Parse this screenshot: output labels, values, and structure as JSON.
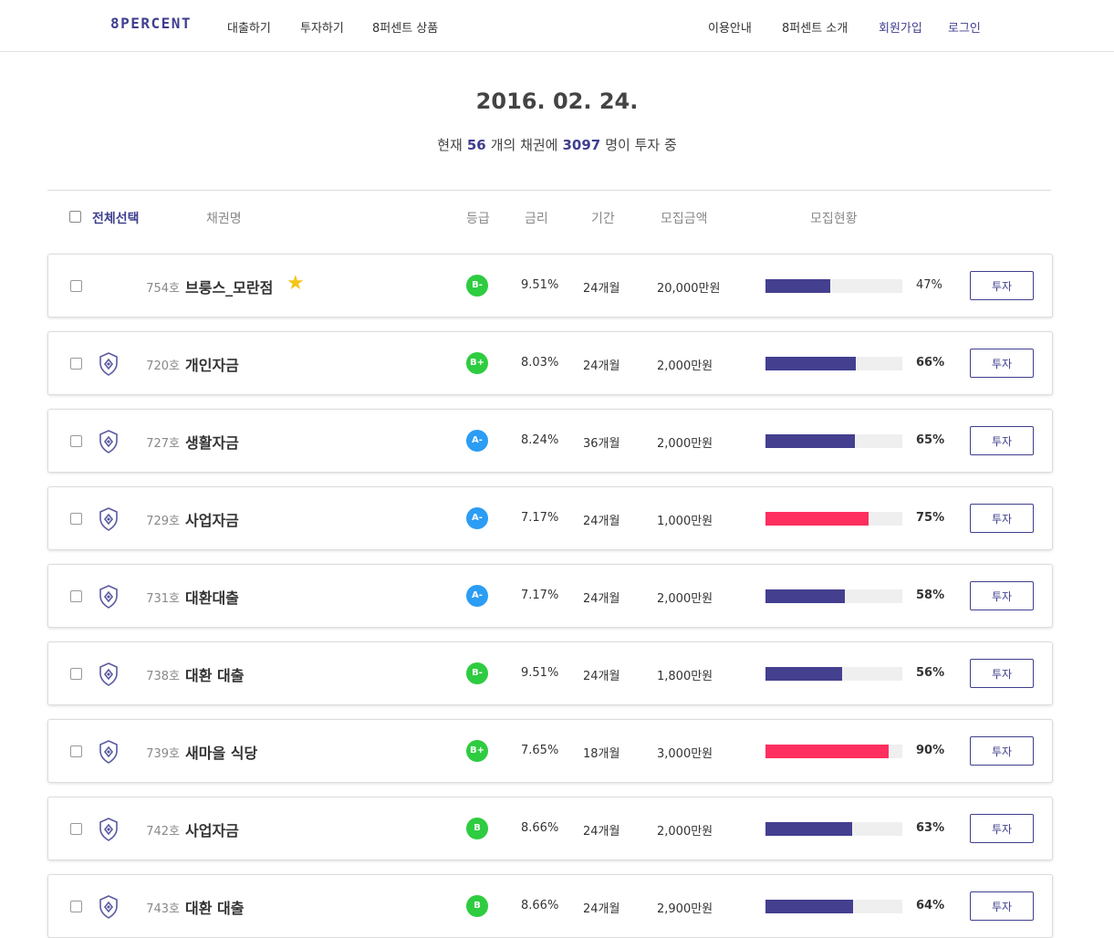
{
  "header": {
    "logo": "8PERCENT",
    "nav_left": [
      "대출하기",
      "투자하기",
      "8퍼센트 상품"
    ],
    "nav_right": [
      "이용안내",
      "8퍼센트 소개",
      "회원가입",
      "로그인"
    ],
    "accent_color": "#3f3f8f"
  },
  "summary": {
    "date": "2016. 02. 24.",
    "prefix": "현재",
    "bond_count": "56",
    "mid": "개의 채권에",
    "investor_count": "3097",
    "suffix": "명이 투자 중"
  },
  "table": {
    "select_all": "전체선택",
    "columns": [
      "채권명",
      "등급",
      "금리",
      "기간",
      "모집금액",
      "모집현황"
    ],
    "invest_label": "투자",
    "rows": [
      {
        "no": "754호",
        "name": "브룽스_모란점",
        "star": true,
        "shield": false,
        "grade": "B-",
        "grade_color": "#2ecc40",
        "rate": "9.51%",
        "term": "24개월",
        "amount": "20,000만원",
        "progress": 47,
        "pct": "47%",
        "bar_color": "#443f8f",
        "pct_bold": false
      },
      {
        "no": "720호",
        "name": "개인자금",
        "star": false,
        "shield": true,
        "grade": "B+",
        "grade_color": "#2ecc40",
        "rate": "8.03%",
        "term": "24개월",
        "amount": "2,000만원",
        "progress": 66,
        "pct": "66%",
        "bar_color": "#443f8f",
        "pct_bold": true
      },
      {
        "no": "727호",
        "name": "생활자금",
        "star": false,
        "shield": true,
        "grade": "A-",
        "grade_color": "#2b9df4",
        "rate": "8.24%",
        "term": "36개월",
        "amount": "2,000만원",
        "progress": 65,
        "pct": "65%",
        "bar_color": "#443f8f",
        "pct_bold": true
      },
      {
        "no": "729호",
        "name": "사업자금",
        "star": false,
        "shield": true,
        "grade": "A-",
        "grade_color": "#2b9df4",
        "rate": "7.17%",
        "term": "24개월",
        "amount": "1,000만원",
        "progress": 75,
        "pct": "75%",
        "bar_color": "#ff2f5f",
        "pct_bold": true
      },
      {
        "no": "731호",
        "name": "대환대출",
        "star": false,
        "shield": true,
        "grade": "A-",
        "grade_color": "#2b9df4",
        "rate": "7.17%",
        "term": "24개월",
        "amount": "2,000만원",
        "progress": 58,
        "pct": "58%",
        "bar_color": "#443f8f",
        "pct_bold": true
      },
      {
        "no": "738호",
        "name": "대환 대출",
        "star": false,
        "shield": true,
        "grade": "B-",
        "grade_color": "#2ecc40",
        "rate": "9.51%",
        "term": "24개월",
        "amount": "1,800만원",
        "progress": 56,
        "pct": "56%",
        "bar_color": "#443f8f",
        "pct_bold": true
      },
      {
        "no": "739호",
        "name": "새마을 식당",
        "star": false,
        "shield": true,
        "grade": "B+",
        "grade_color": "#2ecc40",
        "rate": "7.65%",
        "term": "18개월",
        "amount": "3,000만원",
        "progress": 90,
        "pct": "90%",
        "bar_color": "#ff2f5f",
        "pct_bold": true
      },
      {
        "no": "742호",
        "name": "사업자금",
        "star": false,
        "shield": true,
        "grade": "B",
        "grade_color": "#2ecc40",
        "rate": "8.66%",
        "term": "24개월",
        "amount": "2,000만원",
        "progress": 63,
        "pct": "63%",
        "bar_color": "#443f8f",
        "pct_bold": true
      },
      {
        "no": "743호",
        "name": "대환 대출",
        "star": false,
        "shield": true,
        "grade": "B",
        "grade_color": "#2ecc40",
        "rate": "8.66%",
        "term": "24개월",
        "amount": "2,900만원",
        "progress": 64,
        "pct": "64%",
        "bar_color": "#443f8f",
        "pct_bold": true
      }
    ]
  }
}
